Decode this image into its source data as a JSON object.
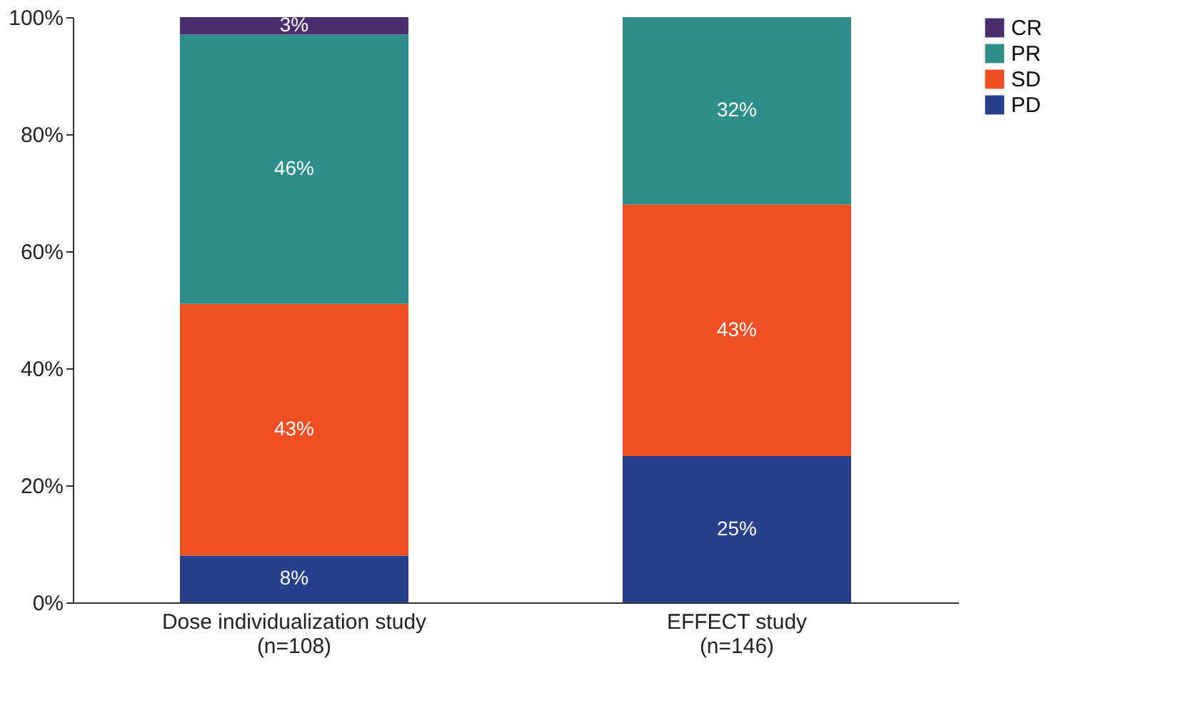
{
  "chart_data": {
    "type": "bar",
    "stacked": true,
    "categories": [
      "Dose individualization study\n(n=108)",
      "EFFECT study\n(n=146)"
    ],
    "series": [
      {
        "name": "PD",
        "color": "#27408b",
        "values": [
          8,
          25
        ],
        "value_labels": [
          "8%",
          "25%"
        ]
      },
      {
        "name": "SD",
        "color": "#f04e23",
        "values": [
          43,
          43
        ],
        "value_labels": [
          "43%",
          "43%"
        ]
      },
      {
        "name": "PR",
        "color": "#2e8f8a",
        "values": [
          46,
          32
        ],
        "value_labels": [
          "46%",
          "32%"
        ]
      },
      {
        "name": "CR",
        "color": "#4b2e6e",
        "values": [
          3,
          null
        ],
        "value_labels": [
          "3%",
          null
        ]
      }
    ],
    "ylim": [
      0,
      100
    ],
    "yticks": [
      {
        "value": 0,
        "label": "0%"
      },
      {
        "value": 20,
        "label": "20%"
      },
      {
        "value": 40,
        "label": "40%"
      },
      {
        "value": 60,
        "label": "60%"
      },
      {
        "value": 80,
        "label": "80%"
      },
      {
        "value": 100,
        "label": "100%"
      }
    ],
    "grid": false,
    "legend": "right"
  }
}
